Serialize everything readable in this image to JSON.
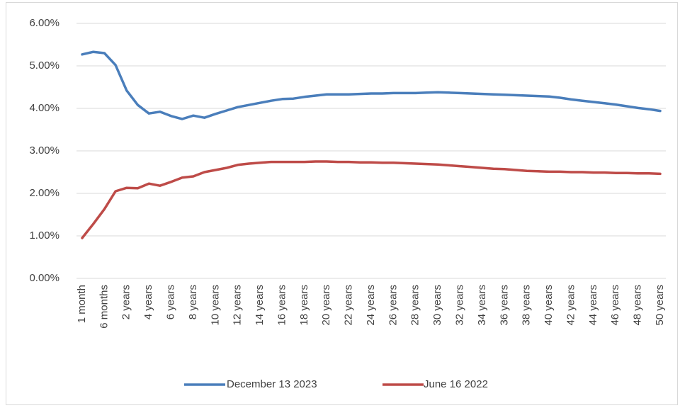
{
  "chart_data": {
    "type": "line",
    "categories": [
      "1 month",
      null,
      "6 months",
      null,
      "2 years",
      null,
      "4 years",
      null,
      "6 years",
      null,
      "8 years",
      null,
      "10 years",
      null,
      "12 years",
      null,
      "14 years",
      null,
      "16 years",
      null,
      "18 years",
      null,
      "20 years",
      null,
      "22 years",
      null,
      "24 years",
      null,
      "26 years",
      null,
      "28 years",
      null,
      "30 years",
      null,
      "32 years",
      null,
      "34 years",
      null,
      "36 years",
      null,
      "38 years",
      null,
      "40 years",
      null,
      "42 years",
      null,
      "44 years",
      null,
      "46 years",
      null,
      "48 years",
      null,
      "50 years"
    ],
    "series": [
      {
        "name": "December 13 2023",
        "color": "#4a7ebb",
        "values": [
          5.27,
          5.33,
          5.3,
          5.02,
          4.42,
          4.08,
          3.88,
          3.92,
          3.82,
          3.75,
          3.83,
          3.78,
          3.87,
          3.95,
          4.03,
          4.08,
          4.13,
          4.18,
          4.22,
          4.23,
          4.27,
          4.3,
          4.33,
          4.33,
          4.33,
          4.34,
          4.35,
          4.35,
          4.36,
          4.36,
          4.36,
          4.37,
          4.38,
          4.37,
          4.36,
          4.35,
          4.34,
          4.33,
          4.32,
          4.31,
          4.3,
          4.29,
          4.28,
          4.25,
          4.21,
          4.18,
          4.15,
          4.12,
          4.09,
          4.05,
          4.01,
          3.98,
          3.94
        ]
      },
      {
        "name": "June 16 2022",
        "color": "#be4b48",
        "values": [
          0.95,
          1.28,
          1.63,
          2.05,
          2.13,
          2.12,
          2.23,
          2.18,
          2.27,
          2.37,
          2.4,
          2.5,
          2.55,
          2.6,
          2.67,
          2.7,
          2.72,
          2.74,
          2.74,
          2.74,
          2.74,
          2.75,
          2.75,
          2.74,
          2.74,
          2.73,
          2.73,
          2.72,
          2.72,
          2.71,
          2.7,
          2.69,
          2.68,
          2.66,
          2.64,
          2.62,
          2.6,
          2.58,
          2.57,
          2.55,
          2.53,
          2.52,
          2.51,
          2.51,
          2.5,
          2.5,
          2.49,
          2.49,
          2.48,
          2.48,
          2.47,
          2.47,
          2.46
        ]
      }
    ],
    "ylim": [
      0,
      6
    ],
    "yticks": [
      {
        "value": 0,
        "label": "0.00%"
      },
      {
        "value": 1,
        "label": "1.00%"
      },
      {
        "value": 2,
        "label": "2.00%"
      },
      {
        "value": 3,
        "label": "3.00%"
      },
      {
        "value": 4,
        "label": "4.00%"
      },
      {
        "value": 5,
        "label": "5.00%"
      },
      {
        "value": 6,
        "label": "6.00%"
      }
    ],
    "grid": true,
    "legend": "bottom"
  }
}
